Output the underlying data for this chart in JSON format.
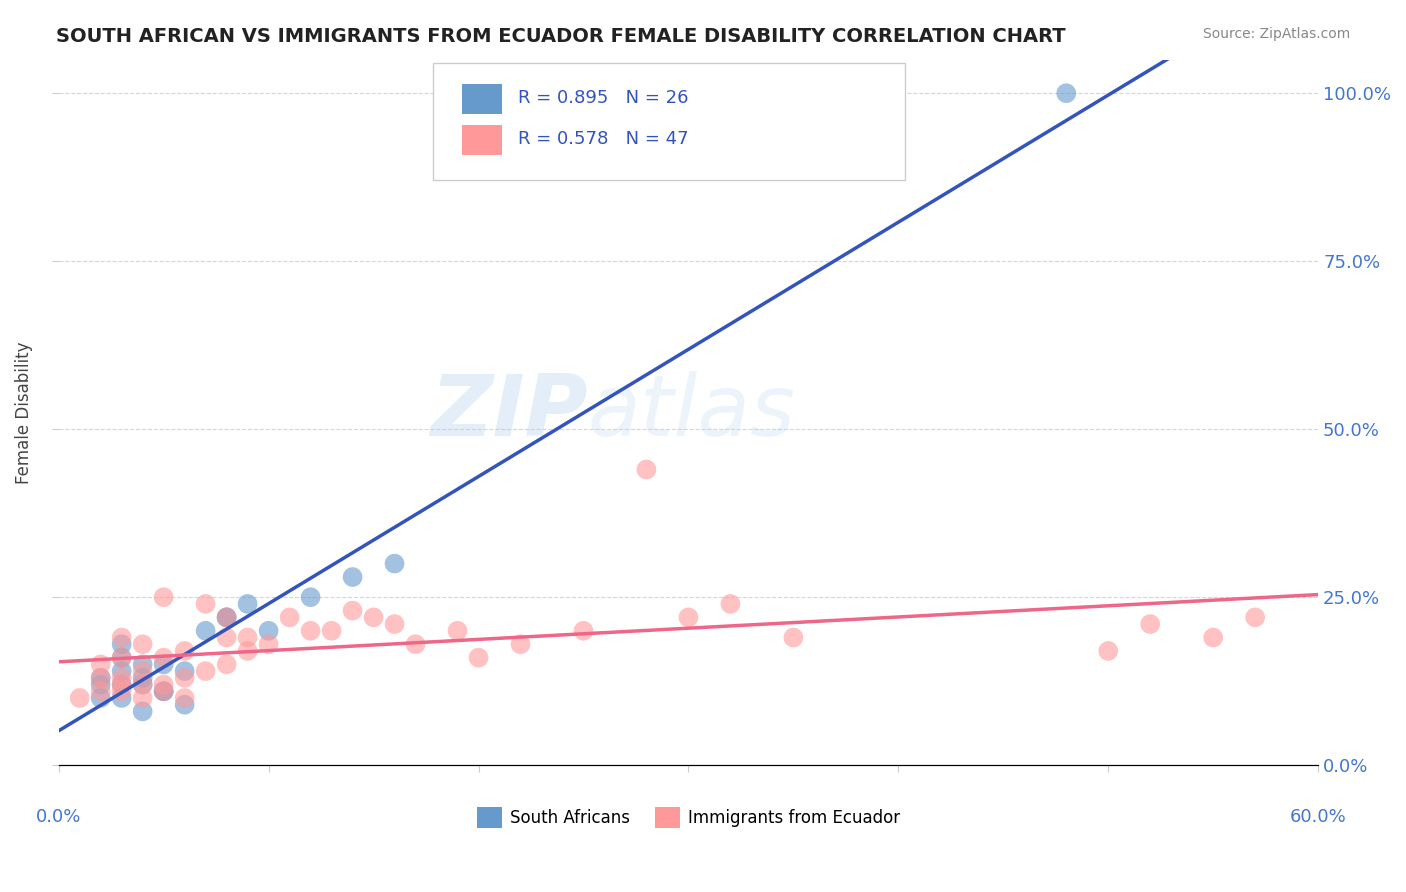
{
  "title": "SOUTH AFRICAN VS IMMIGRANTS FROM ECUADOR FEMALE DISABILITY CORRELATION CHART",
  "source": "Source: ZipAtlas.com",
  "ylabel": "Female Disability",
  "ytick_labels": [
    "0.0%",
    "25.0%",
    "50.0%",
    "75.0%",
    "100.0%"
  ],
  "ytick_values": [
    0.0,
    0.25,
    0.5,
    0.75,
    1.0
  ],
  "xlim": [
    0.0,
    0.6
  ],
  "ylim": [
    0.0,
    1.05
  ],
  "blue_R": 0.895,
  "blue_N": 26,
  "pink_R": 0.578,
  "pink_N": 47,
  "blue_color": "#6699CC",
  "pink_color": "#FF9999",
  "blue_line_color": "#3355BB",
  "pink_line_color": "#EE6688",
  "legend_label_blue": "South Africans",
  "legend_label_pink": "Immigrants from Ecuador",
  "watermark_zip": "ZIP",
  "watermark_atlas": "atlas",
  "background_color": "#FFFFFF",
  "blue_scatter_x": [
    0.02,
    0.03,
    0.04,
    0.02,
    0.03,
    0.05,
    0.06,
    0.04,
    0.03,
    0.02,
    0.04,
    0.05,
    0.03,
    0.06,
    0.07,
    0.04,
    0.08,
    0.09,
    0.03,
    0.05,
    0.1,
    0.12,
    0.08,
    0.14,
    0.16,
    0.48
  ],
  "blue_scatter_y": [
    0.12,
    0.1,
    0.08,
    0.13,
    0.14,
    0.11,
    0.09,
    0.15,
    0.12,
    0.1,
    0.13,
    0.11,
    0.16,
    0.14,
    0.2,
    0.12,
    0.22,
    0.24,
    0.18,
    0.15,
    0.2,
    0.25,
    0.22,
    0.28,
    0.3,
    1.0
  ],
  "pink_scatter_x": [
    0.01,
    0.02,
    0.03,
    0.04,
    0.02,
    0.03,
    0.05,
    0.06,
    0.04,
    0.03,
    0.02,
    0.04,
    0.05,
    0.03,
    0.06,
    0.07,
    0.04,
    0.08,
    0.09,
    0.03,
    0.05,
    0.1,
    0.12,
    0.08,
    0.14,
    0.16,
    0.07,
    0.09,
    0.11,
    0.13,
    0.05,
    0.15,
    0.17,
    0.19,
    0.06,
    0.08,
    0.2,
    0.22,
    0.25,
    0.3,
    0.35,
    0.5,
    0.52,
    0.28,
    0.32,
    0.55,
    0.57
  ],
  "pink_scatter_y": [
    0.1,
    0.11,
    0.12,
    0.1,
    0.13,
    0.11,
    0.12,
    0.1,
    0.14,
    0.13,
    0.15,
    0.12,
    0.11,
    0.16,
    0.13,
    0.14,
    0.18,
    0.15,
    0.17,
    0.19,
    0.16,
    0.18,
    0.2,
    0.22,
    0.23,
    0.21,
    0.24,
    0.19,
    0.22,
    0.2,
    0.25,
    0.22,
    0.18,
    0.2,
    0.17,
    0.19,
    0.16,
    0.18,
    0.2,
    0.22,
    0.19,
    0.17,
    0.21,
    0.44,
    0.24,
    0.19,
    0.22
  ]
}
